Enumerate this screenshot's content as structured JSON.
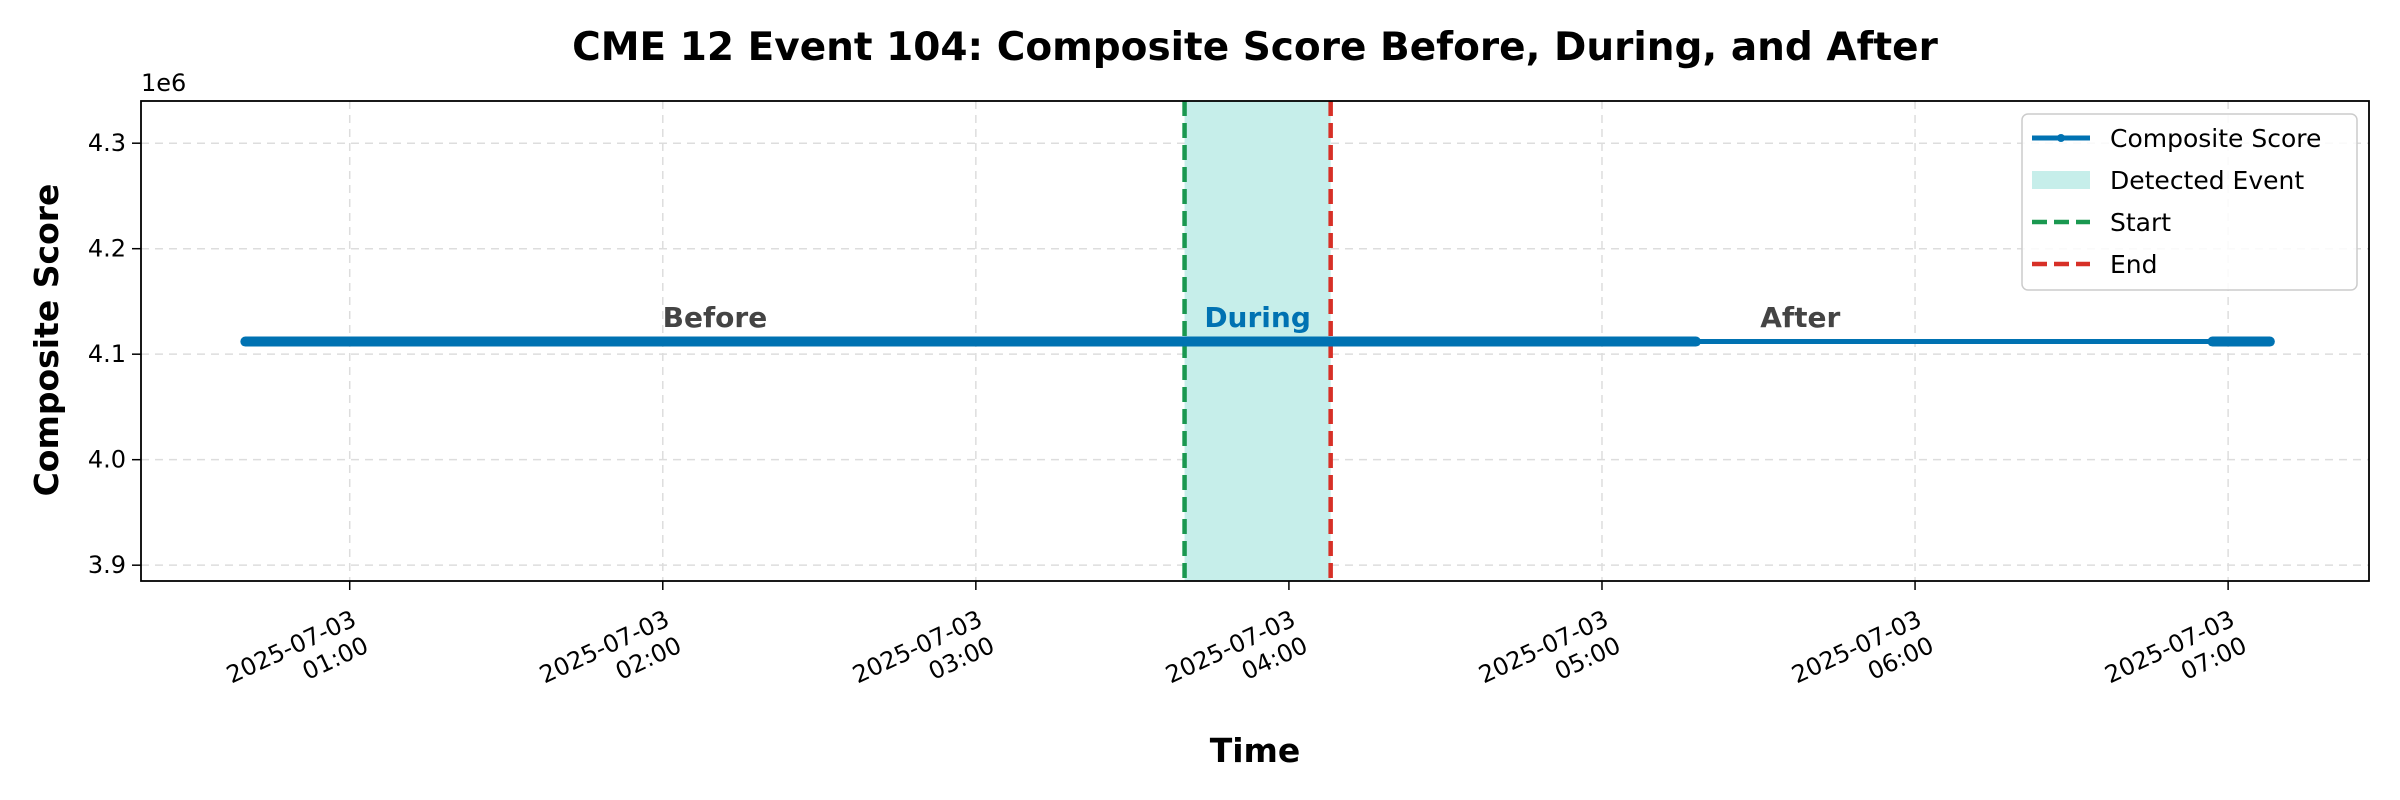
{
  "chart_data": {
    "type": "line",
    "title": "CME 12 Event 104: Composite Score Before, During, and After",
    "xlabel": "Time",
    "ylabel": "Composite Score",
    "y_offset_label": "1e6",
    "ylim": [
      3.885,
      4.34
    ],
    "y_ticks": [
      3.9,
      4.0,
      4.1,
      4.2,
      4.3
    ],
    "y_tick_labels": [
      "3.9",
      "4.0",
      "4.1",
      "4.2",
      "4.3"
    ],
    "xlim": [
      "2025-07-03 00:20",
      "2025-07-03 07:27"
    ],
    "x_ticks": [
      {
        "value": "2025-07-03 01:00",
        "line1": "2025-07-03",
        "line2": "01:00"
      },
      {
        "value": "2025-07-03 02:00",
        "line1": "2025-07-03",
        "line2": "02:00"
      },
      {
        "value": "2025-07-03 03:00",
        "line1": "2025-07-03",
        "line2": "03:00"
      },
      {
        "value": "2025-07-03 04:00",
        "line1": "2025-07-03",
        "line2": "04:00"
      },
      {
        "value": "2025-07-03 05:00",
        "line1": "2025-07-03",
        "line2": "05:00"
      },
      {
        "value": "2025-07-03 06:00",
        "line1": "2025-07-03",
        "line2": "06:00"
      },
      {
        "value": "2025-07-03 07:00",
        "line1": "2025-07-03",
        "line2": "07:00"
      }
    ],
    "grid": true,
    "legend_placement": "top-right",
    "series": [
      {
        "name": "Composite Score",
        "color": "#0072b2",
        "segments": [
          {
            "x": [
              "2025-07-03 00:40",
              "2025-07-03 05:18"
            ],
            "y": [
              4.112,
              4.112
            ],
            "style": "dense"
          },
          {
            "x": [
              "2025-07-03 05:18",
              "2025-07-03 06:57"
            ],
            "y": [
              4.112,
              4.112
            ],
            "style": "sparse"
          },
          {
            "x": [
              "2025-07-03 06:57",
              "2025-07-03 07:08"
            ],
            "y": [
              4.112,
              4.112
            ],
            "style": "dense"
          }
        ]
      }
    ],
    "event": {
      "legend_label": "Detected Event",
      "start": "2025-07-03 03:40",
      "end": "2025-07-03 04:08",
      "fill_color": "#c6eeea",
      "start_label": "Start",
      "end_label": "End",
      "start_color": "#1a9850",
      "end_color": "#d73027"
    },
    "annotations": [
      {
        "text": "Before",
        "x": "2025-07-03 02:10",
        "y": 4.126,
        "color": "#444444"
      },
      {
        "text": "During",
        "x": "2025-07-03 03:54",
        "y": 4.126,
        "color": "#0072b2"
      },
      {
        "text": "After",
        "x": "2025-07-03 05:38",
        "y": 4.126,
        "color": "#444444"
      }
    ]
  }
}
